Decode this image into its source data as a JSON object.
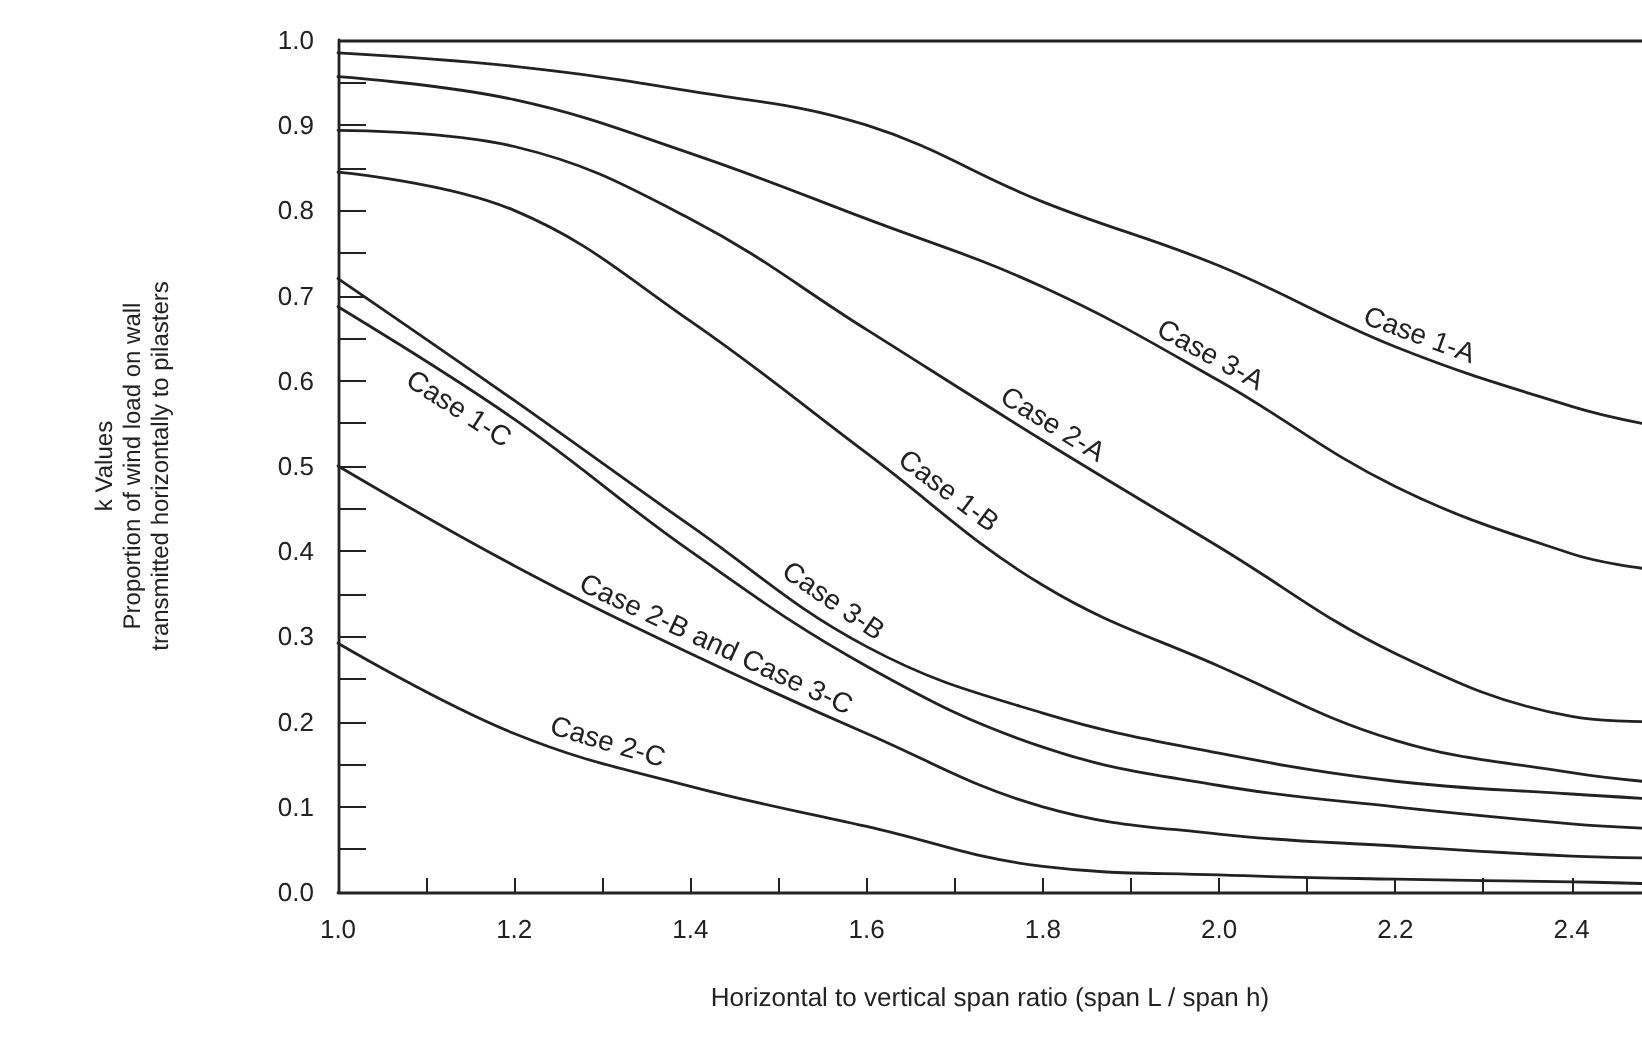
{
  "chart_data": {
    "type": "line",
    "xlabel": "Horizontal to vertical span ratio (span L / span h)",
    "ylabel": "k Values\nProportion of wind load on wall\ntransmitted horizontally to pilasters",
    "xlim": [
      1.0,
      2.48
    ],
    "ylim": [
      0.0,
      1.0
    ],
    "xticks": [
      {
        "value": 1.0,
        "label": "1.0"
      },
      {
        "value": 1.1,
        "label": null
      },
      {
        "value": 1.2,
        "label": "1.2"
      },
      {
        "value": 1.3,
        "label": null
      },
      {
        "value": 1.4,
        "label": "1.4"
      },
      {
        "value": 1.5,
        "label": null
      },
      {
        "value": 1.6,
        "label": "1.6"
      },
      {
        "value": 1.7,
        "label": null
      },
      {
        "value": 1.8,
        "label": "1.8"
      },
      {
        "value": 1.9,
        "label": null
      },
      {
        "value": 2.0,
        "label": "2.0"
      },
      {
        "value": 2.1,
        "label": null
      },
      {
        "value": 2.2,
        "label": "2.2"
      },
      {
        "value": 2.3,
        "label": null
      },
      {
        "value": 2.4,
        "label": "2.4"
      }
    ],
    "yticks": [
      {
        "value": 0.0,
        "label": "0.0"
      },
      {
        "value": 0.05,
        "label": null
      },
      {
        "value": 0.1,
        "label": "0.1"
      },
      {
        "value": 0.15,
        "label": null
      },
      {
        "value": 0.2,
        "label": "0.2"
      },
      {
        "value": 0.25,
        "label": null
      },
      {
        "value": 0.3,
        "label": "0.3"
      },
      {
        "value": 0.35,
        "label": null
      },
      {
        "value": 0.4,
        "label": "0.4"
      },
      {
        "value": 0.45,
        "label": null
      },
      {
        "value": 0.5,
        "label": "0.5"
      },
      {
        "value": 0.55,
        "label": null
      },
      {
        "value": 0.6,
        "label": "0.6"
      },
      {
        "value": 0.65,
        "label": null
      },
      {
        "value": 0.7,
        "label": "0.7"
      },
      {
        "value": 0.75,
        "label": null
      },
      {
        "value": 0.8,
        "label": "0.8"
      },
      {
        "value": 0.85,
        "label": null
      },
      {
        "value": 0.9,
        "label": "0.9"
      },
      {
        "value": 0.95,
        "label": null
      },
      {
        "value": 1.0,
        "label": "1.0"
      }
    ],
    "grid": false,
    "legend": false,
    "marker": "none",
    "line_style": "solid",
    "x": [
      1.0,
      1.2,
      1.4,
      1.6,
      1.8,
      2.0,
      2.2,
      2.4,
      2.48
    ],
    "ref_lines": [
      {
        "axis": "y",
        "value": 1.0,
        "color": "#222222"
      }
    ],
    "series": [
      {
        "name": "Case 1-A",
        "color": "#222222",
        "values": [
          0.985,
          0.969,
          0.94,
          0.9,
          0.81,
          0.735,
          0.64,
          0.57,
          0.55
        ]
      },
      {
        "name": "Case 3-A",
        "color": "#222222",
        "values": [
          0.957,
          0.93,
          0.867,
          0.79,
          0.71,
          0.6,
          0.476,
          0.397,
          0.38
        ]
      },
      {
        "name": "Case 2-A",
        "color": "#222222",
        "values": [
          0.894,
          0.875,
          0.79,
          0.66,
          0.53,
          0.405,
          0.28,
          0.206,
          0.2
        ]
      },
      {
        "name": "Case 1-B",
        "color": "#222222",
        "values": [
          0.845,
          0.8,
          0.67,
          0.515,
          0.36,
          0.265,
          0.178,
          0.14,
          0.13
        ]
      },
      {
        "name": "Case 3-B",
        "color": "#222222",
        "values": [
          0.72,
          0.577,
          0.43,
          0.288,
          0.21,
          0.163,
          0.13,
          0.115,
          0.11
        ]
      },
      {
        "name": "Case 1-C",
        "color": "#222222",
        "values": [
          0.687,
          0.555,
          0.4,
          0.265,
          0.17,
          0.125,
          0.1,
          0.08,
          0.075
        ]
      },
      {
        "name": "Case 2-B and Case 3-C",
        "color": "#222222",
        "values": [
          0.5,
          0.383,
          0.28,
          0.186,
          0.1,
          0.068,
          0.054,
          0.042,
          0.04
        ]
      },
      {
        "name": "Case 2-C",
        "color": "#222222",
        "values": [
          0.292,
          0.186,
          0.124,
          0.077,
          0.03,
          0.02,
          0.015,
          0.012,
          0.01
        ]
      }
    ]
  }
}
